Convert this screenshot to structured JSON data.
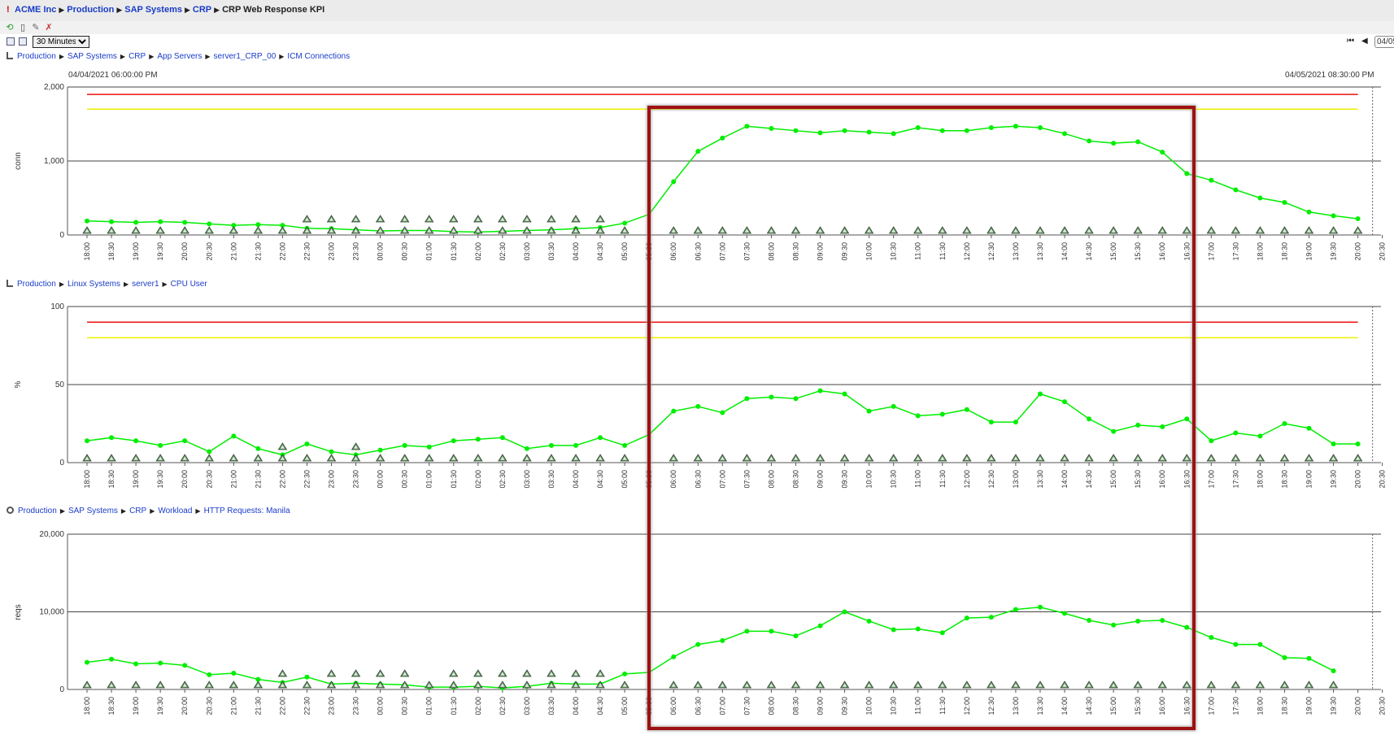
{
  "header": {
    "alert_glyph": "!",
    "breadcrumb": [
      "ACME Inc",
      "Production",
      "SAP Systems",
      "CRP"
    ],
    "current": "CRP Web Response KPI"
  },
  "toolbar": {
    "icons": [
      "refresh-icon",
      "delete-icon",
      "edit-icon",
      "pin-icon"
    ]
  },
  "controls": {
    "interval": "30 Minutes",
    "interval_options": [
      "30 Minutes"
    ],
    "date_value": "04/05",
    "nav_first": "⏮",
    "nav_prev": "◀"
  },
  "range": {
    "start": "04/04/2021 06:00:00 PM",
    "end": "04/05/2021 08:30:00 PM"
  },
  "colors": {
    "series": "#00ee00",
    "critical": "#ee1111",
    "warning": "#f0f000",
    "highlight": "#9e1111"
  },
  "chart_data": [
    {
      "type": "line",
      "breadcrumb": [
        "Production",
        "SAP Systems",
        "CRP",
        "App Servers",
        "server1_CRP_00",
        "ICM Connections"
      ],
      "ylabel": "conn",
      "ylim": [
        0,
        2000
      ],
      "yticks": [
        "0",
        "1,000",
        "2,000"
      ],
      "thresholds": {
        "critical": 1900,
        "warning": 1700
      },
      "x": [
        "18:00",
        "18:30",
        "19:00",
        "19:30",
        "20:00",
        "20:30",
        "21:00",
        "21:30",
        "22:00",
        "22:30",
        "23:00",
        "23:30",
        "00:00",
        "00:30",
        "01:00",
        "01:30",
        "02:00",
        "02:30",
        "03:00",
        "03:30",
        "04:00",
        "04:30",
        "05:00",
        "05:30",
        "06:00",
        "06:30",
        "07:00",
        "07:30",
        "08:00",
        "08:30",
        "09:00",
        "09:30",
        "10:00",
        "10:30",
        "11:00",
        "11:30",
        "12:00",
        "12:30",
        "13:00",
        "13:30",
        "14:00",
        "14:30",
        "15:00",
        "15:30",
        "16:00",
        "16:30",
        "17:00",
        "17:30",
        "18:00",
        "18:30",
        "19:00",
        "19:30",
        "20:00",
        "20:30"
      ],
      "values": [
        190,
        180,
        170,
        180,
        170,
        150,
        130,
        140,
        130,
        90,
        85,
        70,
        55,
        60,
        60,
        45,
        40,
        50,
        60,
        70,
        85,
        100,
        160,
        280,
        720,
        1130,
        1310,
        1470,
        1440,
        1410,
        1380,
        1410,
        1390,
        1370,
        1450,
        1410,
        1410,
        1450,
        1470,
        1450,
        1370,
        1270,
        1240,
        1260,
        1120,
        830,
        740,
        610,
        500,
        440,
        310,
        260,
        220,
        null
      ],
      "alert_markers_high": [
        9,
        10,
        11,
        12,
        13,
        14,
        15,
        16,
        17,
        18,
        19,
        20,
        21
      ]
    },
    {
      "type": "line",
      "breadcrumb": [
        "Production",
        "Linux Systems",
        "server1",
        "CPU User"
      ],
      "ylabel": "%",
      "ylim": [
        0,
        100
      ],
      "yticks": [
        "0",
        "50",
        "100"
      ],
      "thresholds": {
        "critical": 90,
        "warning": 80
      },
      "x": [
        "18:00",
        "18:30",
        "19:00",
        "19:30",
        "20:00",
        "20:30",
        "21:00",
        "21:30",
        "22:00",
        "22:30",
        "23:00",
        "23:30",
        "00:00",
        "00:30",
        "01:00",
        "01:30",
        "02:00",
        "02:30",
        "03:00",
        "03:30",
        "04:00",
        "04:30",
        "05:00",
        "05:30",
        "06:00",
        "06:30",
        "07:00",
        "07:30",
        "08:00",
        "08:30",
        "09:00",
        "09:30",
        "10:00",
        "10:30",
        "11:00",
        "11:30",
        "12:00",
        "12:30",
        "13:00",
        "13:30",
        "14:00",
        "14:30",
        "15:00",
        "15:30",
        "16:00",
        "16:30",
        "17:00",
        "17:30",
        "18:00",
        "18:30",
        "19:00",
        "19:30",
        "20:00",
        "20:30"
      ],
      "values": [
        14,
        16,
        14,
        11,
        14,
        7,
        17,
        9,
        5,
        12,
        7,
        5,
        8,
        11,
        10,
        14,
        15,
        16,
        9,
        11,
        11,
        16,
        11,
        18,
        33,
        36,
        32,
        41,
        42,
        41,
        46,
        44,
        33,
        36,
        30,
        31,
        34,
        26,
        26,
        44,
        39,
        28,
        20,
        24,
        23,
        28,
        14,
        19,
        17,
        25,
        22,
        12,
        12,
        null
      ],
      "alert_markers_high": [
        8,
        11
      ]
    },
    {
      "type": "line",
      "breadcrumb": [
        "Production",
        "SAP Systems",
        "CRP",
        "Workload",
        "HTTP Requests: Manila"
      ],
      "ylabel": "reqs",
      "ylim": [
        0,
        20000
      ],
      "yticks": [
        "0",
        "10,000",
        "20,000"
      ],
      "thresholds": null,
      "x": [
        "18:00",
        "18:30",
        "19:00",
        "19:30",
        "20:00",
        "20:30",
        "21:00",
        "21:30",
        "22:00",
        "22:30",
        "23:00",
        "23:30",
        "00:00",
        "00:30",
        "01:00",
        "01:30",
        "02:00",
        "02:30",
        "03:00",
        "03:30",
        "04:00",
        "04:30",
        "05:00",
        "05:30",
        "06:00",
        "06:30",
        "07:00",
        "07:30",
        "08:00",
        "08:30",
        "09:00",
        "09:30",
        "10:00",
        "10:30",
        "11:00",
        "11:30",
        "12:00",
        "12:30",
        "13:00",
        "13:30",
        "14:00",
        "14:30",
        "15:00",
        "15:30",
        "16:00",
        "16:30",
        "17:00",
        "17:30",
        "18:00",
        "18:30",
        "19:00",
        "19:30",
        "20:00",
        "20:30"
      ],
      "values": [
        3500,
        3900,
        3300,
        3400,
        3100,
        1900,
        2100,
        1300,
        900,
        1600,
        700,
        800,
        700,
        600,
        300,
        300,
        400,
        200,
        400,
        800,
        700,
        700,
        2000,
        2200,
        4200,
        5800,
        6300,
        7500,
        7500,
        6900,
        8200,
        10000,
        8800,
        7700,
        7800,
        7300,
        9200,
        9300,
        10300,
        10600,
        9800,
        8900,
        8300,
        8800,
        8900,
        8000,
        6700,
        5800,
        5800,
        4100,
        4000,
        2400,
        null,
        null
      ],
      "alert_markers_high": [
        8,
        10,
        11,
        12,
        13,
        15,
        16,
        17,
        18,
        19,
        20,
        21
      ]
    }
  ]
}
